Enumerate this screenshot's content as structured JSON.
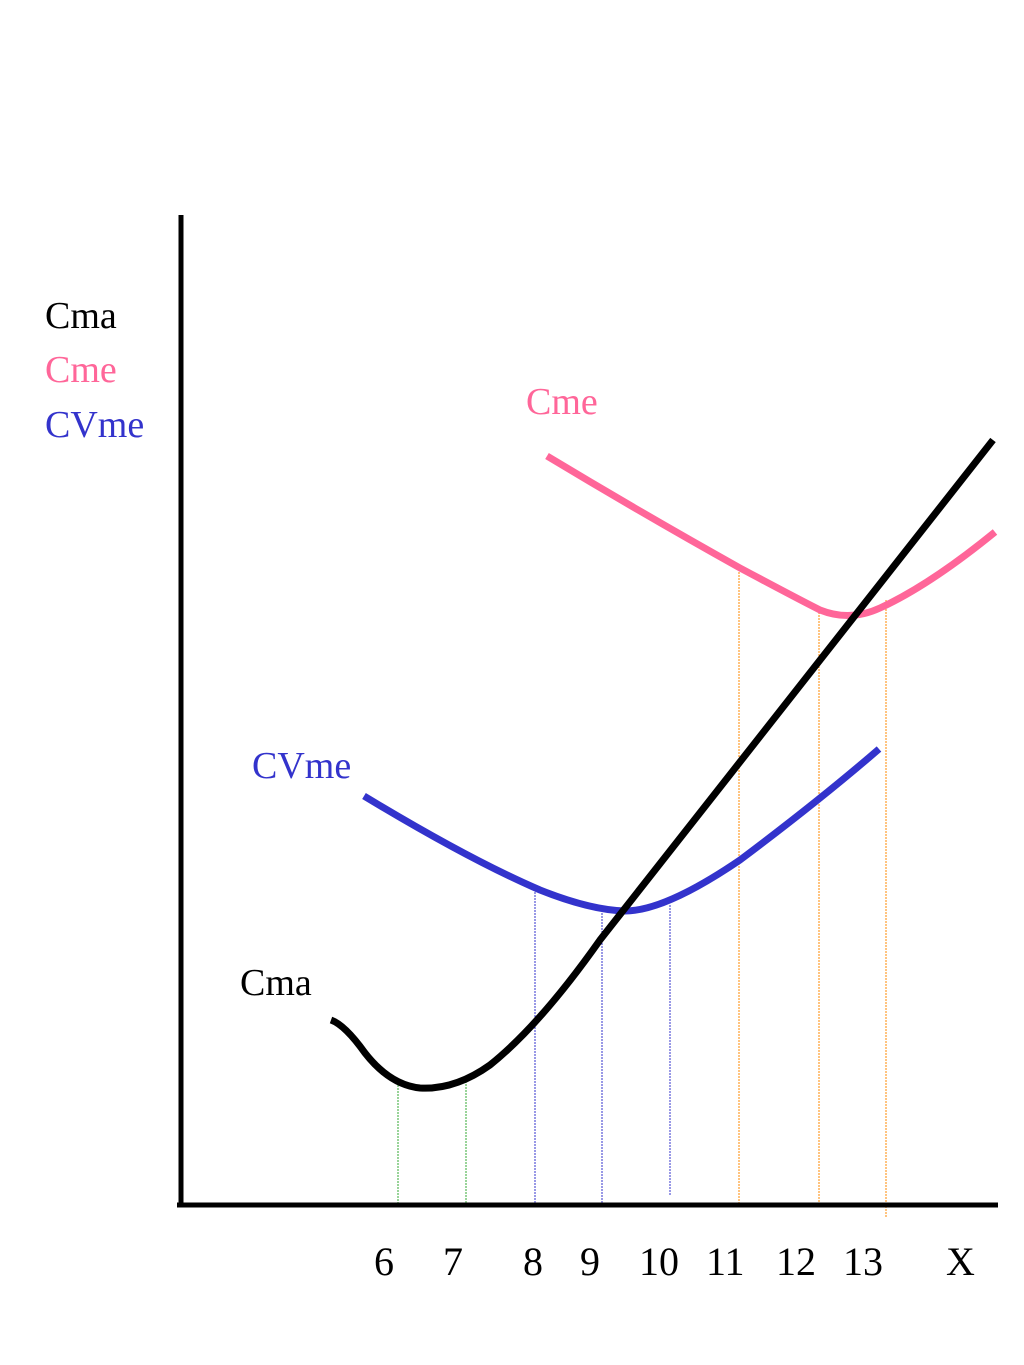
{
  "colors": {
    "axis": "#000000",
    "cma": "#000000",
    "cme": "#ff6699",
    "cvme": "#3333cc",
    "guide_green": "#33aa33",
    "guide_blue": "#3333cc",
    "guide_orange": "#ff8800"
  },
  "y_axis_labels": [
    {
      "text": "Cma",
      "color_key": "cma"
    },
    {
      "text": "Cme",
      "color_key": "cme"
    },
    {
      "text": "CVme",
      "color_key": "cvme"
    }
  ],
  "curve_labels": {
    "cma": "Cma",
    "cme": "Cme",
    "cvme": "CVme"
  },
  "x_axis_label": "X",
  "x_ticks": [
    "6",
    "7",
    "8",
    "9",
    "10",
    "11",
    "12",
    "13"
  ],
  "guides": {
    "cma": [
      "6",
      "7"
    ],
    "cvme": [
      "8",
      "9",
      "10"
    ],
    "cme": [
      "11",
      "12",
      "13"
    ]
  }
}
